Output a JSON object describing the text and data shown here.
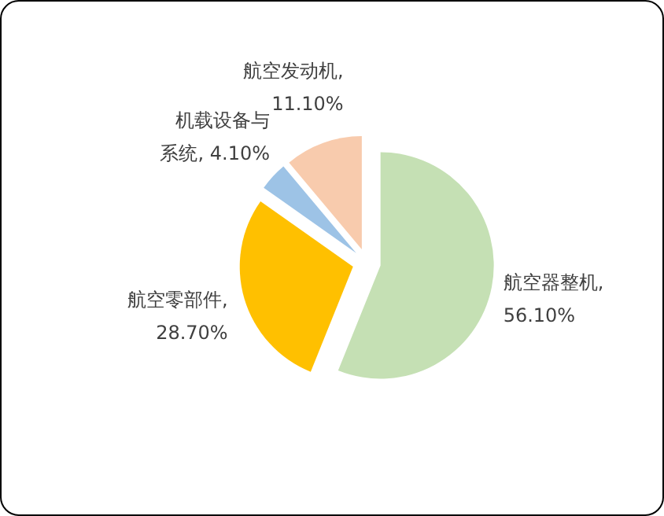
{
  "chart_data": {
    "type": "pie",
    "categories": [
      "航空器整机",
      "航空零部件",
      "机载设备与系统",
      "航空发动机"
    ],
    "values": [
      56.1,
      28.7,
      4.1,
      11.1
    ],
    "value_labels": [
      ", 56.10%",
      ", 28.70%",
      ", 4.10%",
      ", 11.10%"
    ],
    "colors": [
      "#c5e0b4",
      "#ffc000",
      "#9dc3e6",
      "#f8cbad"
    ]
  }
}
